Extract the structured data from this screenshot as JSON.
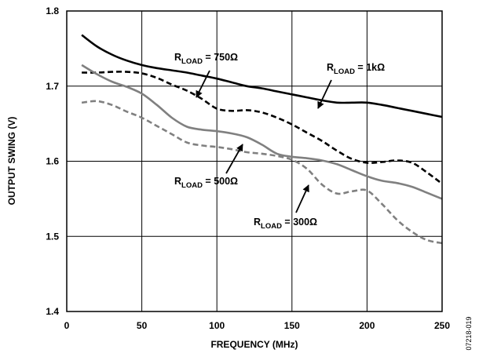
{
  "chart_data": {
    "type": "line",
    "xlabel": "FREQUENCY (MHz)",
    "ylabel": "OUTPUT SWING (V)",
    "xlim": [
      0,
      250
    ],
    "ylim": [
      1.4,
      1.8
    ],
    "xticks": [
      "0",
      "50",
      "100",
      "150",
      "200",
      "250"
    ],
    "yticks": [
      "1.4",
      "1.5",
      "1.6",
      "1.7",
      "1.8"
    ],
    "grid": true,
    "series": [
      {
        "name": "RLOAD = 1kΩ",
        "color": "#000000",
        "dash": "solid",
        "x": [
          10,
          20,
          30,
          40,
          50,
          60,
          70,
          80,
          90,
          100,
          110,
          120,
          130,
          140,
          150,
          160,
          170,
          180,
          190,
          200,
          210,
          220,
          230,
          240,
          250
        ],
        "y": [
          1.768,
          1.753,
          1.742,
          1.734,
          1.728,
          1.724,
          1.721,
          1.718,
          1.714,
          1.71,
          1.705,
          1.7,
          1.697,
          1.693,
          1.689,
          1.685,
          1.681,
          1.678,
          1.678,
          1.678,
          1.675,
          1.671,
          1.667,
          1.663,
          1.659
        ]
      },
      {
        "name": "RLOAD = 750Ω",
        "color": "#000000",
        "dash": "dashed",
        "x": [
          10,
          20,
          30,
          40,
          50,
          60,
          70,
          80,
          90,
          100,
          110,
          120,
          130,
          140,
          150,
          160,
          170,
          180,
          190,
          200,
          210,
          220,
          230,
          240,
          250
        ],
        "y": [
          1.718,
          1.718,
          1.719,
          1.719,
          1.717,
          1.711,
          1.702,
          1.694,
          1.683,
          1.67,
          1.667,
          1.668,
          1.665,
          1.658,
          1.649,
          1.638,
          1.627,
          1.614,
          1.603,
          1.598,
          1.599,
          1.601,
          1.598,
          1.585,
          1.57
        ]
      },
      {
        "name": "RLOAD = 500Ω",
        "color": "#808080",
        "dash": "solid",
        "x": [
          10,
          20,
          30,
          40,
          50,
          60,
          70,
          80,
          90,
          100,
          110,
          120,
          130,
          140,
          150,
          160,
          170,
          180,
          190,
          200,
          210,
          220,
          230,
          240,
          250
        ],
        "y": [
          1.728,
          1.716,
          1.706,
          1.699,
          1.69,
          1.675,
          1.658,
          1.646,
          1.642,
          1.64,
          1.637,
          1.632,
          1.622,
          1.61,
          1.606,
          1.604,
          1.601,
          1.596,
          1.588,
          1.58,
          1.574,
          1.571,
          1.566,
          1.558,
          1.55
        ]
      },
      {
        "name": "RLOAD = 300Ω",
        "color": "#808080",
        "dash": "dashed",
        "x": [
          10,
          20,
          30,
          40,
          50,
          60,
          70,
          80,
          90,
          100,
          110,
          120,
          130,
          140,
          150,
          160,
          170,
          180,
          190,
          200,
          210,
          220,
          230,
          240,
          250
        ],
        "y": [
          1.678,
          1.68,
          1.675,
          1.666,
          1.658,
          1.647,
          1.636,
          1.625,
          1.621,
          1.619,
          1.616,
          1.612,
          1.61,
          1.607,
          1.602,
          1.59,
          1.569,
          1.557,
          1.56,
          1.561,
          1.543,
          1.522,
          1.506,
          1.495,
          1.491
        ]
      }
    ],
    "annotations": [
      {
        "name": "rload-750-annotation",
        "prefix": "R",
        "sub": "LOAD",
        "suffix": " = 750Ω",
        "color": "#000000"
      },
      {
        "name": "rload-1k-annotation",
        "prefix": "R",
        "sub": "LOAD",
        "suffix": " = 1kΩ",
        "color": "#000000"
      },
      {
        "name": "rload-500-annotation",
        "prefix": "R",
        "sub": "LOAD",
        "suffix": " = 500Ω",
        "color": "#000000"
      },
      {
        "name": "rload-300-annotation",
        "prefix": "R",
        "sub": "LOAD",
        "suffix": " = 300Ω",
        "color": "#000000"
      }
    ],
    "figure_code": "07218-019"
  }
}
